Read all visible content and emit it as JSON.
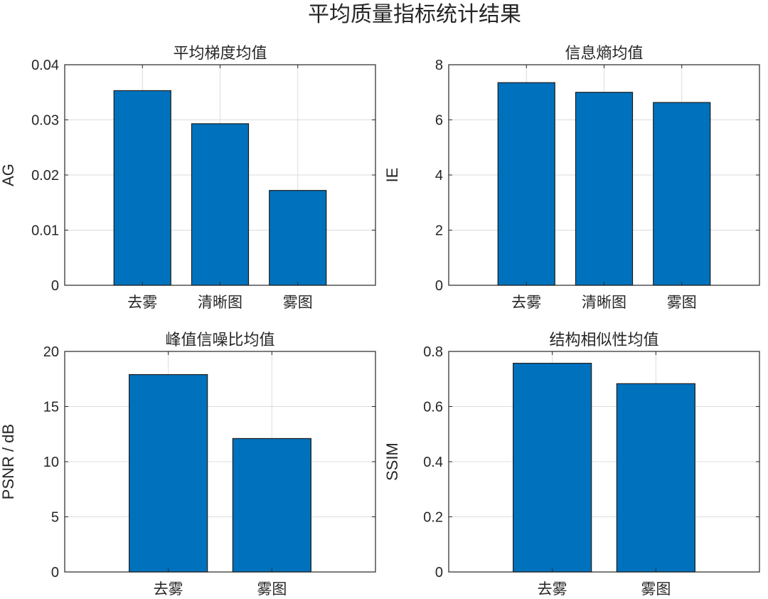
{
  "figure_title": "平均质量指标统计结果",
  "colors": {
    "bar": "#0072BD",
    "edge": "#1a1a1a",
    "grid": "#dcdcdc",
    "axis": "#262626"
  },
  "chart_data": [
    {
      "type": "bar",
      "title": "平均梯度均值",
      "ylabel": "AG",
      "categories": [
        "去雾",
        "清晰图",
        "雾图"
      ],
      "values": [
        0.0353,
        0.0293,
        0.0172
      ],
      "ylim": [
        0,
        0.04
      ],
      "yticks": [
        0,
        0.01,
        0.02,
        0.03,
        0.04
      ],
      "ytick_labels": [
        "0",
        "0.01",
        "0.02",
        "0.03",
        "0.04"
      ],
      "grid": true
    },
    {
      "type": "bar",
      "title": "信息熵均值",
      "ylabel": "IE",
      "categories": [
        "去雾",
        "清晰图",
        "雾图"
      ],
      "values": [
        7.35,
        7.0,
        6.63
      ],
      "ylim": [
        0,
        8
      ],
      "yticks": [
        0,
        2,
        4,
        6,
        8
      ],
      "ytick_labels": [
        "0",
        "2",
        "4",
        "6",
        "8"
      ],
      "grid": true
    },
    {
      "type": "bar",
      "title": "峰值信噪比均值",
      "ylabel": "PSNR / dB",
      "categories": [
        "去雾",
        "雾图"
      ],
      "values": [
        17.9,
        12.1
      ],
      "ylim": [
        0,
        20
      ],
      "yticks": [
        0,
        5,
        10,
        15,
        20
      ],
      "ytick_labels": [
        "0",
        "5",
        "10",
        "15",
        "20"
      ],
      "grid": true
    },
    {
      "type": "bar",
      "title": "结构相似性均值",
      "ylabel": "SSIM",
      "categories": [
        "去雾",
        "雾图"
      ],
      "values": [
        0.757,
        0.683
      ],
      "ylim": [
        0,
        0.8
      ],
      "yticks": [
        0,
        0.2,
        0.4,
        0.6,
        0.8
      ],
      "ytick_labels": [
        "0",
        "0.2",
        "0.4",
        "0.6",
        "0.8"
      ],
      "grid": true
    }
  ]
}
